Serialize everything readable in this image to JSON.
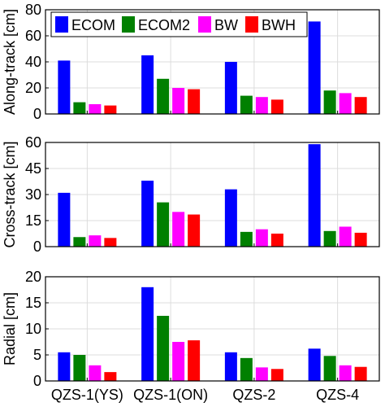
{
  "chart_data": {
    "type": "bar",
    "categories": [
      "QZS-1(YS)",
      "QZS-1(ON)",
      "QZS-2",
      "QZS-4"
    ],
    "legend": {
      "placement": "top-left",
      "entries": [
        {
          "name": "ECOM",
          "color": "#0000ff"
        },
        {
          "name": "ECOM2",
          "color": "#008000"
        },
        {
          "name": "BW",
          "color": "#ff00ff"
        },
        {
          "name": "BWH",
          "color": "#ff0000"
        }
      ]
    },
    "grid": true,
    "panels": [
      {
        "ylabel": "Along-track [cm]",
        "ylim": [
          0,
          80
        ],
        "yticks": [
          "0",
          "20",
          "40",
          "60",
          "80"
        ],
        "series": [
          {
            "name": "ECOM",
            "values": [
              41,
              45,
              40,
              71
            ]
          },
          {
            "name": "ECOM2",
            "values": [
              9,
              27,
              14,
              18
            ]
          },
          {
            "name": "BW",
            "values": [
              7.5,
              20,
              13,
              16
            ]
          },
          {
            "name": "BWH",
            "values": [
              6.5,
              19,
              11,
              13
            ]
          }
        ]
      },
      {
        "ylabel": "Cross-track [cm]",
        "ylim": [
          0,
          60
        ],
        "yticks": [
          "0",
          "15",
          "30",
          "45",
          "60"
        ],
        "series": [
          {
            "name": "ECOM",
            "values": [
              31,
              38,
              33,
              59
            ]
          },
          {
            "name": "ECOM2",
            "values": [
              5.5,
              25.5,
              8.5,
              9
            ]
          },
          {
            "name": "BW",
            "values": [
              6.5,
              20,
              10,
              11.5
            ]
          },
          {
            "name": "BWH",
            "values": [
              5,
              18.5,
              7.5,
              8
            ]
          }
        ]
      },
      {
        "ylabel": "Radial [cm]",
        "ylim": [
          0,
          20
        ],
        "yticks": [
          "0",
          "5",
          "10",
          "15",
          "20"
        ],
        "series": [
          {
            "name": "ECOM",
            "values": [
              5.5,
              18,
              5.5,
              6.2
            ]
          },
          {
            "name": "ECOM2",
            "values": [
              5,
              12.5,
              4.4,
              4.8
            ]
          },
          {
            "name": "BW",
            "values": [
              3,
              7.5,
              2.6,
              3
            ]
          },
          {
            "name": "BWH",
            "values": [
              1.7,
              7.8,
              2.3,
              2.7
            ]
          }
        ]
      }
    ]
  }
}
